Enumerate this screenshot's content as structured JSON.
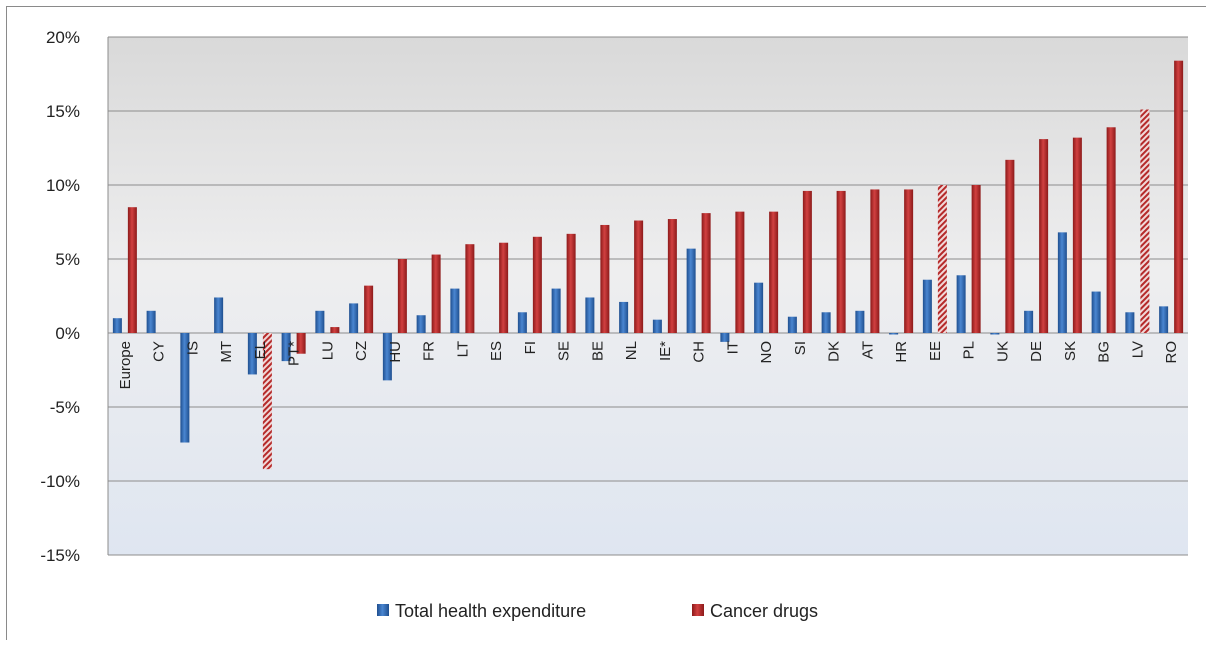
{
  "chart_data": {
    "type": "bar",
    "categories": [
      "Europe",
      "CY",
      "IS",
      "MT",
      "EL",
      "PT*",
      "LU",
      "CZ",
      "HU",
      "FR",
      "LT",
      "ES",
      "FI",
      "SE",
      "BE",
      "NL",
      "IE*",
      "CH",
      "IT",
      "NO",
      "SI",
      "DK",
      "AT",
      "HR",
      "EE",
      "PL",
      "UK",
      "DE",
      "SK",
      "BG",
      "LV",
      "RO"
    ],
    "series": [
      {
        "name": "Total health expenditure",
        "color": "#2f6cb5",
        "values": [
          1.0,
          1.5,
          -7.4,
          2.4,
          -2.8,
          -1.9,
          1.5,
          2.0,
          -3.2,
          1.2,
          3.0,
          0.0,
          1.4,
          3.0,
          2.4,
          2.1,
          0.9,
          5.7,
          -0.6,
          3.4,
          1.1,
          1.4,
          1.5,
          -0.1,
          3.6,
          3.9,
          -0.1,
          1.5,
          6.8,
          2.8,
          1.4,
          1.8
        ]
      },
      {
        "name": "Cancer drugs",
        "color": "#b52a2a",
        "values": [
          8.5,
          0.0,
          0.0,
          0.0,
          -9.2,
          -1.4,
          0.4,
          3.2,
          5.0,
          5.3,
          6.0,
          6.1,
          6.5,
          6.7,
          7.3,
          7.6,
          7.7,
          8.1,
          8.2,
          8.2,
          9.6,
          9.6,
          9.7,
          9.7,
          10.0,
          10.0,
          11.7,
          13.1,
          13.2,
          13.9,
          15.1,
          18.4
        ]
      }
    ],
    "hatched": [
      "EL",
      "EE",
      "LV"
    ],
    "y_ticks": [
      "20%",
      "15%",
      "10%",
      "5%",
      "0%",
      "-5%",
      "-10%",
      "-15%"
    ],
    "ylim": [
      -15,
      20
    ],
    "grid": true,
    "legend_position": "bottom"
  }
}
